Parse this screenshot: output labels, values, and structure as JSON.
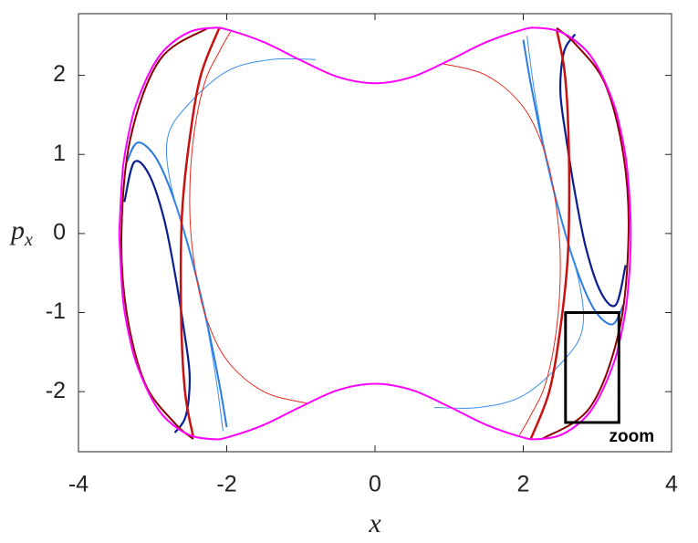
{
  "chart_data": {
    "type": "line",
    "x_label": "x",
    "y_label": "p",
    "y_label_sub": "x",
    "xlim": [
      -4,
      4
    ],
    "ylim": [
      -2.76,
      2.78
    ],
    "xticks": [
      -4,
      -2,
      0,
      2,
      4
    ],
    "yticks": [
      -2,
      -1,
      0,
      1,
      2
    ],
    "series": [
      {
        "color": "#0a1f8f",
        "width": 2.2,
        "x": [
          -3.38,
          -3.25,
          -3.05,
          -2.85,
          -2.7,
          -2.58,
          -2.5,
          -2.55,
          -2.7
        ],
        "values": [
          0.4,
          0.9,
          0.75,
          0.2,
          -0.5,
          -1.2,
          -1.8,
          -2.3,
          -2.52
        ]
      },
      {
        "color": "#0a1f8f",
        "width": 2.2,
        "x": [
          3.38,
          3.25,
          3.05,
          2.85,
          2.7,
          2.58,
          2.5,
          2.55,
          2.7
        ],
        "values": [
          -0.4,
          -0.9,
          -0.75,
          -0.2,
          0.5,
          1.2,
          1.8,
          2.3,
          2.52
        ]
      },
      {
        "color": "#2b7be0",
        "width": 2,
        "x": [
          -3.35,
          -3.2,
          -2.95,
          -2.7,
          -2.45,
          -2.25,
          -2.1,
          -2.0
        ],
        "values": [
          0.9,
          1.15,
          0.95,
          0.4,
          -0.4,
          -1.2,
          -1.9,
          -2.45
        ]
      },
      {
        "color": "#2b7be0",
        "width": 2,
        "x": [
          3.35,
          3.2,
          2.95,
          2.7,
          2.45,
          2.25,
          2.1,
          2.0
        ],
        "values": [
          -0.9,
          -1.15,
          -0.95,
          -0.4,
          0.4,
          1.2,
          1.9,
          2.45
        ]
      },
      {
        "color": "#3a8ff0",
        "width": 1,
        "x": [
          -0.8,
          -1.4,
          -2.0,
          -2.55,
          -2.8,
          -2.75,
          -2.5,
          -2.3,
          -2.15,
          -2.05
        ],
        "values": [
          2.2,
          2.2,
          2.05,
          1.6,
          1.2,
          0.6,
          -0.2,
          -1.0,
          -1.8,
          -2.5
        ]
      },
      {
        "color": "#3a8ff0",
        "width": 1,
        "x": [
          0.8,
          1.4,
          2.0,
          2.55,
          2.8,
          2.75,
          2.5,
          2.3,
          2.15,
          2.05
        ],
        "values": [
          -2.2,
          -2.2,
          -2.05,
          -1.6,
          -1.2,
          -0.6,
          0.2,
          1.0,
          1.8,
          2.5
        ]
      },
      {
        "color": "#e8281e",
        "width": 1,
        "x": [
          0.9,
          1.5,
          2.0,
          2.3,
          2.45,
          2.5,
          2.45,
          2.3,
          2.1,
          1.95
        ],
        "values": [
          2.15,
          2.0,
          1.6,
          1.0,
          0.3,
          -0.4,
          -1.2,
          -1.9,
          -2.3,
          -2.55
        ]
      },
      {
        "color": "#e8281e",
        "width": 1,
        "x": [
          -0.9,
          -1.5,
          -2.0,
          -2.3,
          -2.45,
          -2.5,
          -2.45,
          -2.3,
          -2.1,
          -1.95
        ],
        "values": [
          -2.15,
          -2.0,
          -1.6,
          -1.0,
          -0.3,
          0.4,
          1.2,
          1.9,
          2.3,
          2.55
        ]
      },
      {
        "color": "#c81010",
        "width": 2.5,
        "x": [
          -2.1,
          -2.35,
          -2.5,
          -2.6,
          -2.62,
          -2.6,
          -2.55,
          -2.45
        ],
        "values": [
          2.6,
          2.0,
          1.2,
          0.3,
          -0.6,
          -1.5,
          -2.1,
          -2.58
        ]
      },
      {
        "color": "#c81010",
        "width": 2.5,
        "x": [
          2.1,
          2.35,
          2.5,
          2.6,
          2.62,
          2.6,
          2.55,
          2.45
        ],
        "values": [
          -2.6,
          -2.0,
          -1.2,
          -0.3,
          0.6,
          1.5,
          2.1,
          2.58
        ]
      },
      {
        "color": "#8b0000",
        "width": 2,
        "x": [
          -2.25,
          -2.9,
          -3.3,
          -3.42,
          -3.35,
          -3.1,
          -2.7,
          -2.45
        ],
        "values": [
          2.6,
          2.2,
          1.2,
          0.0,
          -1.0,
          -1.9,
          -2.4,
          -2.6
        ]
      },
      {
        "color": "#8b0000",
        "width": 2,
        "x": [
          2.25,
          2.9,
          3.3,
          3.42,
          3.35,
          3.1,
          2.7,
          2.45
        ],
        "values": [
          -2.6,
          -2.2,
          -1.2,
          0.0,
          1.0,
          1.9,
          2.4,
          2.6
        ]
      },
      {
        "color": "#ff00ff",
        "width": 2,
        "x": [
          -3.45,
          -3.4,
          -3.3,
          -3.2,
          -3,
          -2.8,
          -2.5,
          -2.2,
          -2,
          -1.5,
          -1,
          -0.5,
          0,
          0.5,
          1,
          1.5,
          2,
          2.2,
          2.5,
          2.8,
          3,
          3.2,
          3.3,
          3.4,
          3.45,
          3.4,
          3.3,
          3.2,
          3,
          2.8,
          2.5,
          2.2,
          2,
          1.5,
          1,
          0.5,
          0,
          -0.5,
          -1,
          -1.5,
          -2,
          -2.2,
          -2.5,
          -2.8,
          -3,
          -3.2,
          -3.3,
          -3.4,
          -3.45
        ],
        "values": [
          0,
          0.83,
          1.36,
          1.69,
          2.11,
          2.36,
          2.55,
          2.6,
          2.58,
          2.42,
          2.19,
          1.98,
          1.9,
          1.98,
          2.19,
          2.42,
          2.58,
          2.6,
          2.55,
          2.36,
          2.11,
          1.69,
          1.36,
          0.83,
          0,
          -0.83,
          -1.36,
          -1.69,
          -2.11,
          -2.36,
          -2.55,
          -2.6,
          -2.58,
          -2.42,
          -2.19,
          -1.98,
          -1.9,
          -1.98,
          -2.19,
          -2.42,
          -2.58,
          -2.6,
          -2.55,
          -2.36,
          -2.11,
          -1.69,
          -1.36,
          -0.83,
          0
        ]
      }
    ],
    "zoom_box": {
      "x": [
        2.57,
        3.29
      ],
      "y": [
        -2.39,
        -1.0
      ],
      "label": "zoom"
    }
  }
}
